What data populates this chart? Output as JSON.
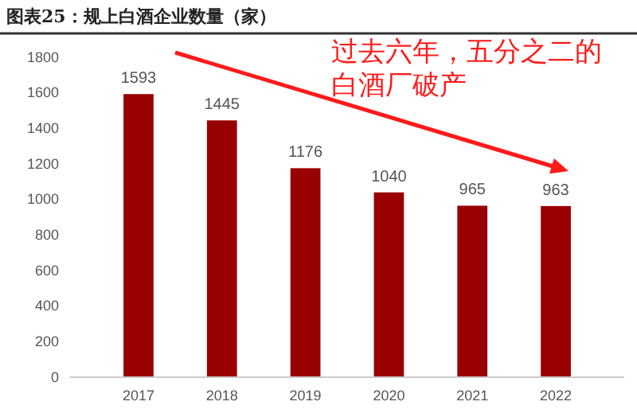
{
  "chart_data": {
    "type": "bar",
    "title": "图表25：规上白酒企业数量（家）",
    "categories": [
      "2017",
      "2018",
      "2019",
      "2020",
      "2021",
      "2022"
    ],
    "values": [
      1593,
      1445,
      1176,
      1040,
      965,
      963
    ],
    "color": "#990000",
    "ylim": [
      0,
      1800
    ],
    "yticks": [
      0,
      200,
      400,
      600,
      800,
      1000,
      1200,
      1400,
      1600,
      1800
    ],
    "data_labels": true,
    "grid": false,
    "annotations": [
      "过去六年，五分之二的白酒厂破产"
    ]
  }
}
